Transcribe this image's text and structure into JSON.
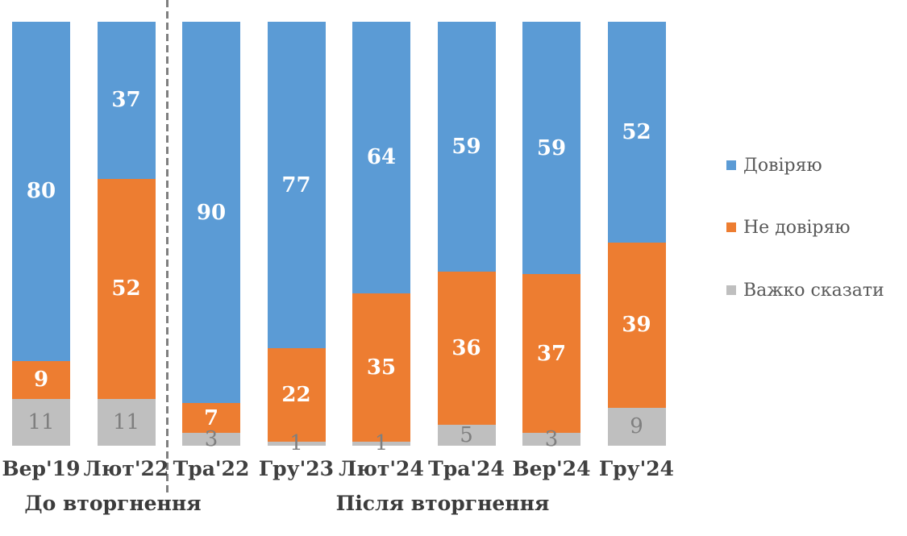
{
  "chart_data": {
    "type": "bar",
    "variant": "100%-stacked-column",
    "title": "",
    "categories": [
      "Вер'19",
      "Лют'22",
      "Тра'22",
      "Гру'23",
      "Лют'24",
      "Тра'24",
      "Вер'24",
      "Гру'24"
    ],
    "series": [
      {
        "name": "Довіряю",
        "color": "#5B9BD5",
        "label_color": "#FFFFFF",
        "label_bold": true,
        "values": [
          80,
          37,
          90,
          77,
          64,
          59,
          59,
          52
        ]
      },
      {
        "name": "Не довіряю",
        "color": "#ED7D31",
        "label_color": "#FFFFFF",
        "label_bold": true,
        "values": [
          9,
          52,
          7,
          22,
          35,
          36,
          37,
          39
        ]
      },
      {
        "name": "Важко сказати",
        "color": "#BFBFBF",
        "label_color": "#7F7F7F",
        "label_bold": false,
        "values": [
          11,
          11,
          3,
          1,
          1,
          5,
          3,
          9
        ]
      }
    ],
    "groups": [
      {
        "label": "До вторгнення",
        "category_indexes": [
          0,
          1
        ]
      },
      {
        "label": "Після вторгнення",
        "category_indexes": [
          2,
          3,
          4,
          5,
          6,
          7
        ]
      }
    ],
    "separator": {
      "after_category": "Лют'22",
      "style": "dashed",
      "color": "#7F7F7F"
    },
    "legend_position": "right",
    "ylim": [
      0,
      100
    ],
    "grid": false,
    "xlabel": "",
    "ylabel": ""
  },
  "colors": {
    "trust": "#5B9BD5",
    "distrust": "#ED7D31",
    "hard_to_say": "#BFBFBF",
    "axis_text": "#404040",
    "legend_text": "#595959",
    "divider": "#7F7F7F",
    "background": "#FFFFFF"
  }
}
